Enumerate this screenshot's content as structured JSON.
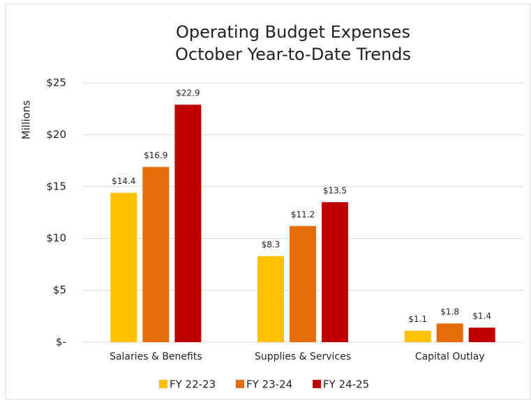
{
  "chart_data": {
    "type": "bar",
    "title": [
      "Operating Budget Expenses",
      "October Year-to-Date Trends"
    ],
    "y_label": "Millions",
    "categories": [
      "Salaries & Benefits",
      "Supplies & Services",
      "Capital Outlay"
    ],
    "series": [
      {
        "name": "FY 22-23",
        "color": "#FFC000",
        "values": [
          14.4,
          8.3,
          1.1
        ],
        "value_labels": [
          "$14.4",
          "$8.3",
          "$1.1"
        ]
      },
      {
        "name": "FY 23-24",
        "color": "#E46C0A",
        "values": [
          16.9,
          11.2,
          1.8
        ],
        "value_labels": [
          "$16.9",
          "$11.2",
          "$1.8"
        ]
      },
      {
        "name": "FY 24-25",
        "color": "#C00000",
        "values": [
          22.9,
          13.5,
          1.4
        ],
        "value_labels": [
          "$22.9",
          "$13.5",
          "$1.4"
        ]
      }
    ],
    "ylim": [
      0,
      25
    ],
    "yticks": [
      {
        "value": 0,
        "label": "$-"
      },
      {
        "value": 5,
        "label": "$5"
      },
      {
        "value": 10,
        "label": "$10"
      },
      {
        "value": 15,
        "label": "$15"
      },
      {
        "value": 20,
        "label": "$20"
      },
      {
        "value": 25,
        "label": "$25"
      }
    ],
    "grid": true,
    "legend": "bottom"
  }
}
